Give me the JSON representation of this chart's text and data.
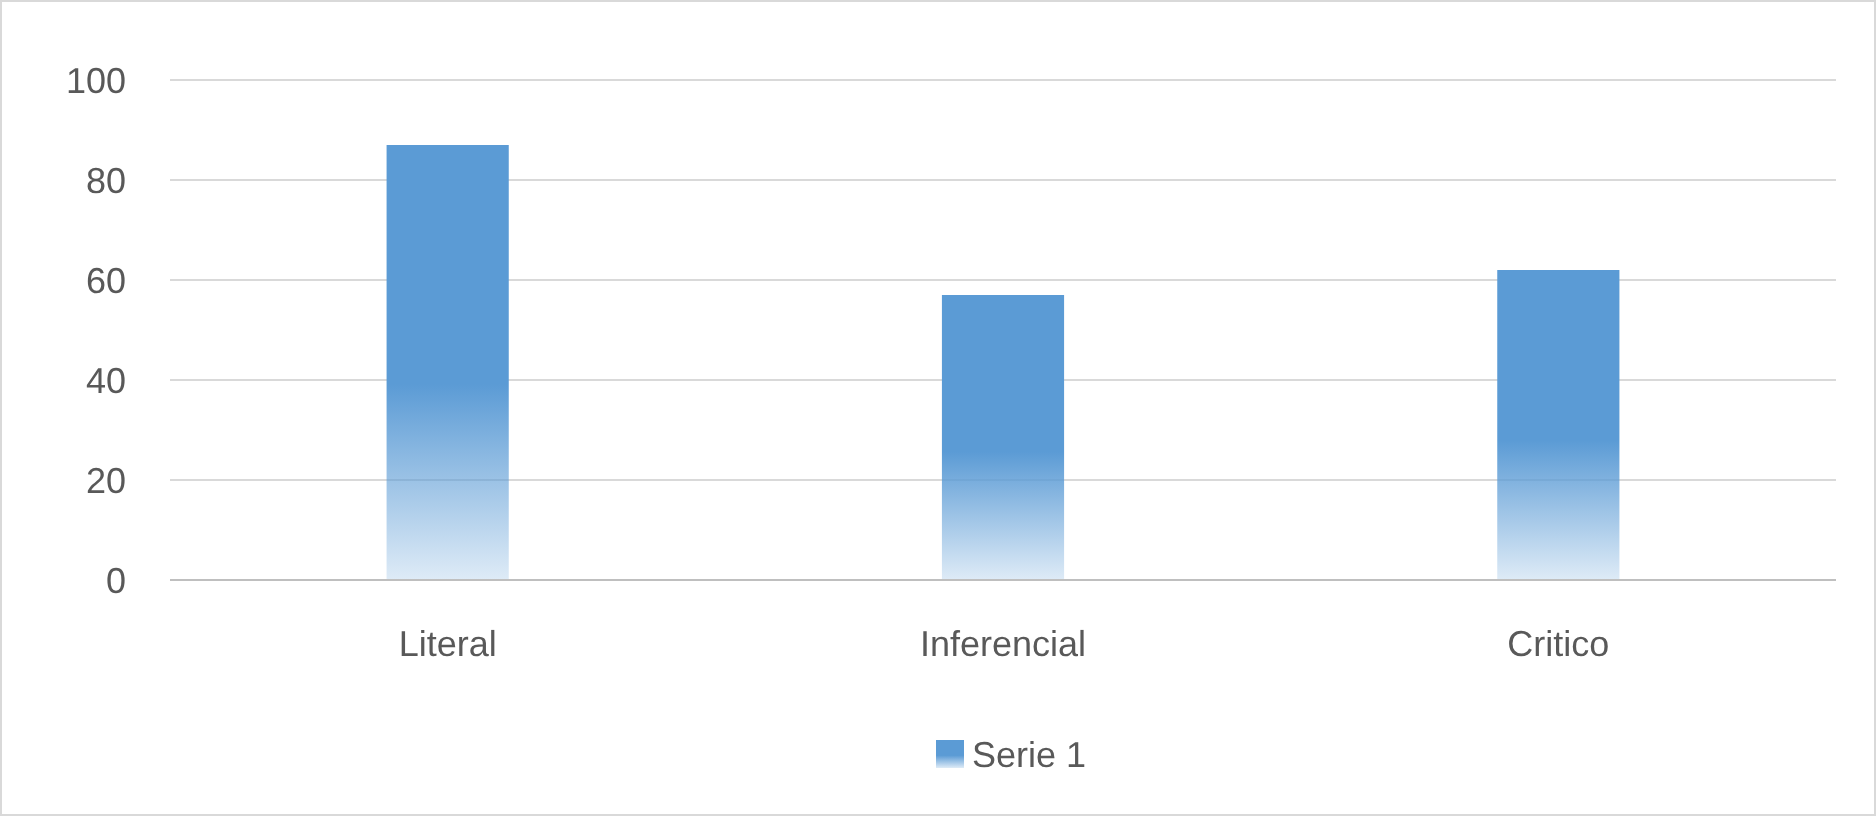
{
  "chart_data": {
    "type": "bar",
    "categories": [
      "Literal",
      "Inferencial",
      "Critico"
    ],
    "series": [
      {
        "name": "Serie 1",
        "color": "#5b9bd5",
        "values": [
          87,
          57,
          62
        ]
      }
    ],
    "ylim": [
      0,
      100
    ],
    "yticks": [
      0,
      20,
      40,
      60,
      80,
      100
    ],
    "grid": "y",
    "legend": "bottom"
  }
}
